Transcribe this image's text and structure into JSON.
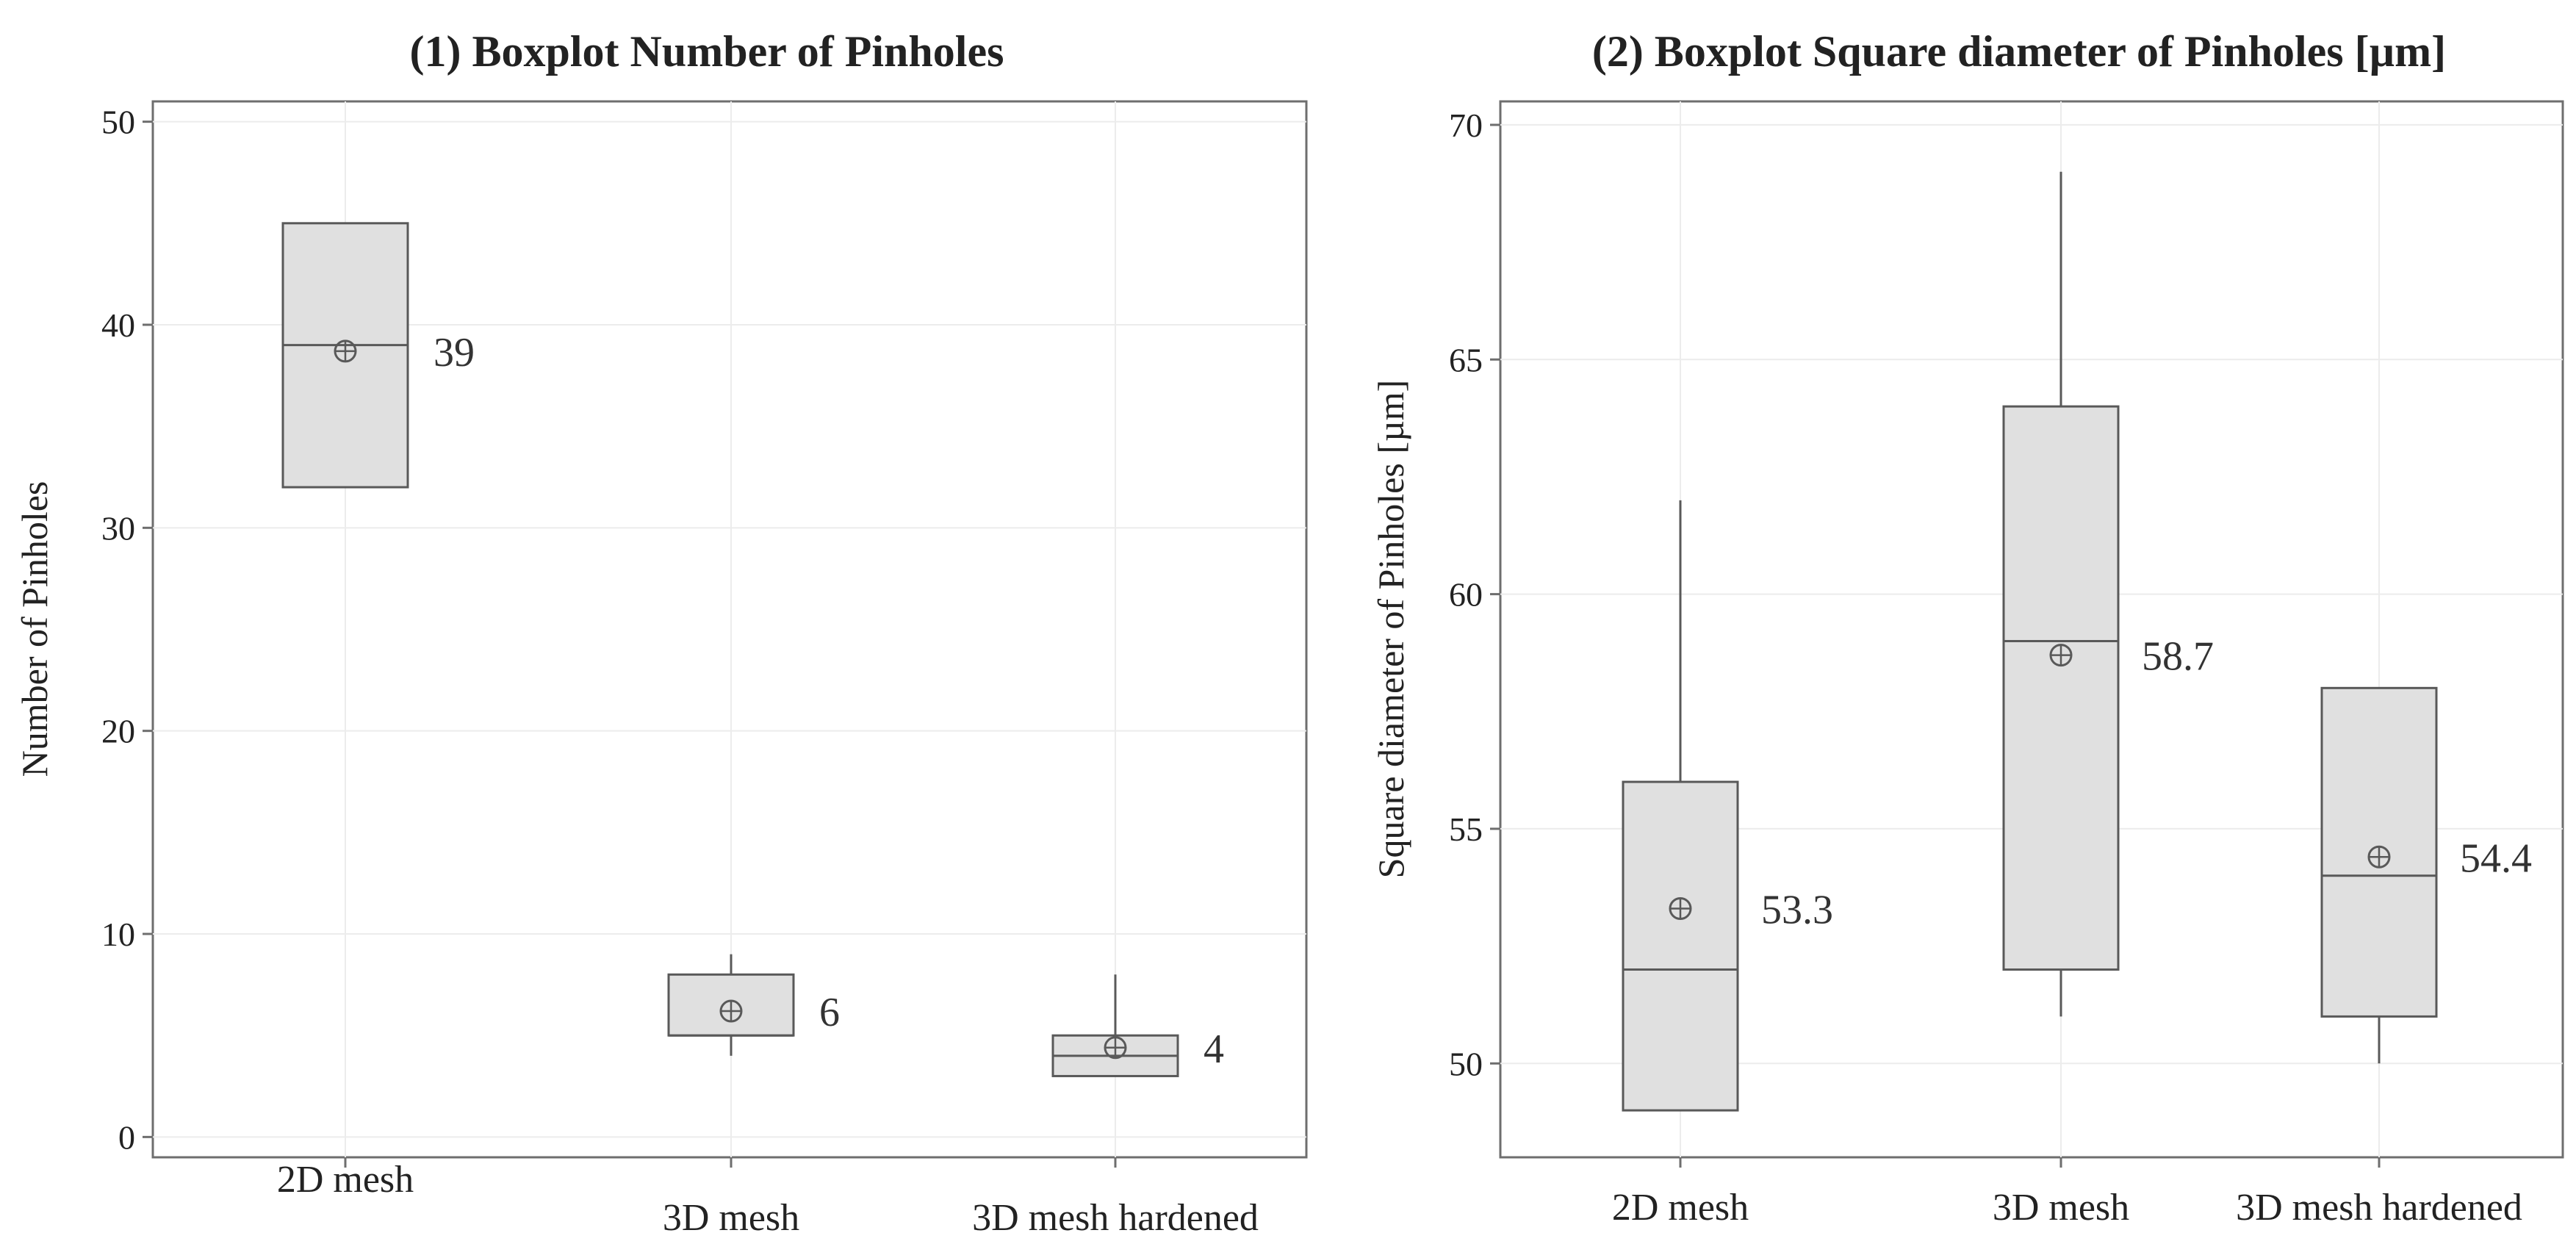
{
  "chart_data": [
    {
      "type": "boxplot",
      "title": "(1) Boxplot Number  of Pinholes",
      "xlabel": "",
      "ylabel": "Number of Pinholes",
      "ylim": [
        -1,
        51
      ],
      "yticks": [
        0,
        10,
        20,
        30,
        40,
        50
      ],
      "grid": true,
      "categories": [
        "2D mesh",
        "3D mesh",
        "3D mesh hardened"
      ],
      "boxes": [
        {
          "category": "2D mesh",
          "whisker_low": 32,
          "q1": 32,
          "median": 39,
          "q3": 45,
          "whisker_high": 45,
          "mean": 38.7,
          "mean_label": "39"
        },
        {
          "category": "3D mesh",
          "whisker_low": 4,
          "q1": 5,
          "median": 5,
          "q3": 8,
          "whisker_high": 9,
          "mean": 6.2,
          "mean_label": "6"
        },
        {
          "category": "3D mesh hardened",
          "whisker_low": 3,
          "q1": 3,
          "median": 4,
          "q3": 5,
          "whisker_high": 8,
          "mean": 4.4,
          "mean_label": "4"
        }
      ]
    },
    {
      "type": "boxplot",
      "title": "(2) Boxplot Square diameter of Pinholes [µm]",
      "xlabel": "",
      "ylabel": "Square diameter  of Pinholes  [µm]",
      "ylim": [
        48,
        70.5
      ],
      "yticks": [
        50,
        55,
        60,
        65,
        70
      ],
      "grid": true,
      "categories": [
        "2D mesh",
        "3D mesh",
        "3D mesh hardened"
      ],
      "boxes": [
        {
          "category": "2D mesh",
          "whisker_low": 49,
          "q1": 49,
          "median": 52,
          "q3": 56,
          "whisker_high": 62,
          "mean": 53.3,
          "mean_label": "53.3"
        },
        {
          "category": "3D mesh",
          "whisker_low": 51,
          "q1": 52,
          "median": 59,
          "q3": 64,
          "whisker_high": 69,
          "mean": 58.7,
          "mean_label": "58.7"
        },
        {
          "category": "3D mesh hardened",
          "whisker_low": 50,
          "q1": 51,
          "median": 54,
          "q3": 58,
          "whisker_high": 58,
          "mean": 54.4,
          "mean_label": "54.4"
        }
      ]
    }
  ],
  "style": {
    "box_fill": "#e0e0e0",
    "box_stroke": "#595959",
    "grid_color": "#ececec",
    "frame_color": "#6e6e6e"
  }
}
